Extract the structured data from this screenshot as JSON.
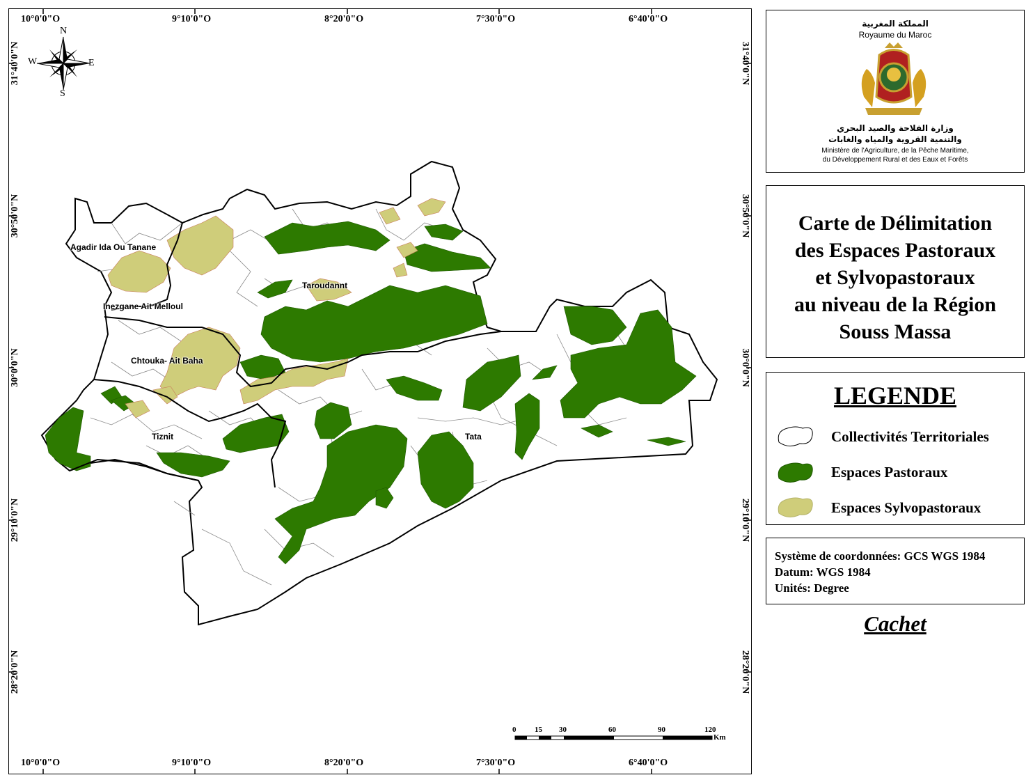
{
  "coordinates": {
    "top_lon": [
      "10°0'0\"O",
      "9°10'0\"O",
      "8°20'0\"O",
      "7°30'0\"O",
      "6°40'0\"O"
    ],
    "bottom_lon": [
      "10°0'0\"O",
      "9°10'0\"O",
      "8°20'0\"O",
      "7°30'0\"O",
      "6°40'0\"O"
    ],
    "left_lat": [
      "31°40'0\"N",
      "30°50'0\"N",
      "30°0'0\"N",
      "29°10'0\"N",
      "28°20'0\"N"
    ],
    "right_lat": [
      "31°40'0\"N",
      "30°50'0\"N",
      "30°0'0\"N",
      "29°10'0\"N",
      "28°20'0\"N"
    ]
  },
  "compass": {
    "north": "N",
    "south": "S",
    "east": "E",
    "west": "W"
  },
  "provinces": [
    "Agadir Ida Ou Tanane",
    "Taroudannt",
    "Inezgane Ait Melloul",
    "Chtouka- Ait Baha",
    "Tiznit",
    "Tata"
  ],
  "scale_bar": {
    "ticks": [
      "0",
      "15",
      "30",
      "60",
      "90",
      "120"
    ],
    "unit": "Km"
  },
  "ministry": {
    "kingdom_ar": "المملكة المغربية",
    "kingdom_fr": "Royaume du Maroc",
    "ministry_ar_line1": "وزارة الفلاحة والصيد البحري",
    "ministry_ar_line2": "والتنمية القروية والمياه والغابات",
    "ministry_fr_line1": "Ministère de l'Agriculture, de la Pêche Maritime,",
    "ministry_fr_line2": "du Développement Rural et des Eaux et Forêts"
  },
  "title": {
    "line1": "Carte de Délimitation",
    "line2": "des Espaces Pastoraux",
    "line3": "et Sylvopastoraux",
    "line4": "au niveau de la Région",
    "line5": "Souss Massa"
  },
  "legend": {
    "heading": "LEGENDE",
    "items": [
      {
        "label": "Collectivités Territoriales",
        "color": "#ffffff"
      },
      {
        "label": "Espaces Pastoraux",
        "color": "#2d7a00"
      },
      {
        "label": "Espaces Sylvopastoraux",
        "color": "#cfcd7a"
      }
    ]
  },
  "coordinate_system": {
    "line1": "Système de coordonnées: GCS WGS 1984",
    "line2": "Datum: WGS 1984",
    "line3": "Unités: Degree"
  },
  "cachet": "Cachet",
  "colors": {
    "pastoral": "#2d7a00",
    "sylvopastoral": "#cfcd7a",
    "boundary": "#000000",
    "commune_line": "#8a8a8a"
  }
}
